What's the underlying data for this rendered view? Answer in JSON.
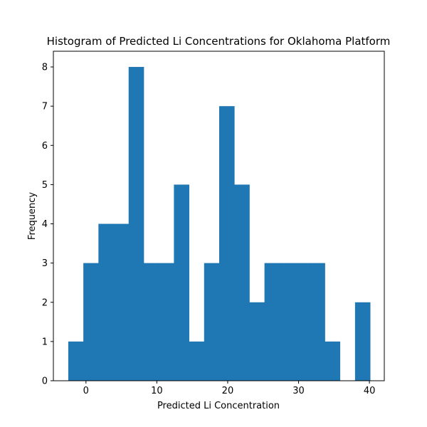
{
  "chart_data": {
    "type": "bar",
    "title": "Histogram of Predicted Li Concentrations for Oklahoma Platform",
    "xlabel": "Predicted Li Concentration",
    "ylabel": "Frequency",
    "xlim": [
      -4.6,
      42.1
    ],
    "ylim": [
      0,
      8.4
    ],
    "x_ticks": [
      0,
      10,
      20,
      30,
      40
    ],
    "y_ticks": [
      0,
      1,
      2,
      3,
      4,
      5,
      6,
      7,
      8
    ],
    "bin_edges": [
      -2.5,
      -0.37,
      1.76,
      3.89,
      6.02,
      8.15,
      10.28,
      12.41,
      14.54,
      16.67,
      18.8,
      20.93,
      23.06,
      25.19,
      27.32,
      29.45,
      31.58,
      33.71,
      35.84,
      37.97,
      40.1
    ],
    "values": [
      1,
      3,
      4,
      4,
      8,
      3,
      3,
      5,
      1,
      3,
      7,
      5,
      2,
      3,
      3,
      3,
      3,
      1,
      0,
      2
    ],
    "bar_color": "#1f77b4",
    "grid": false
  }
}
